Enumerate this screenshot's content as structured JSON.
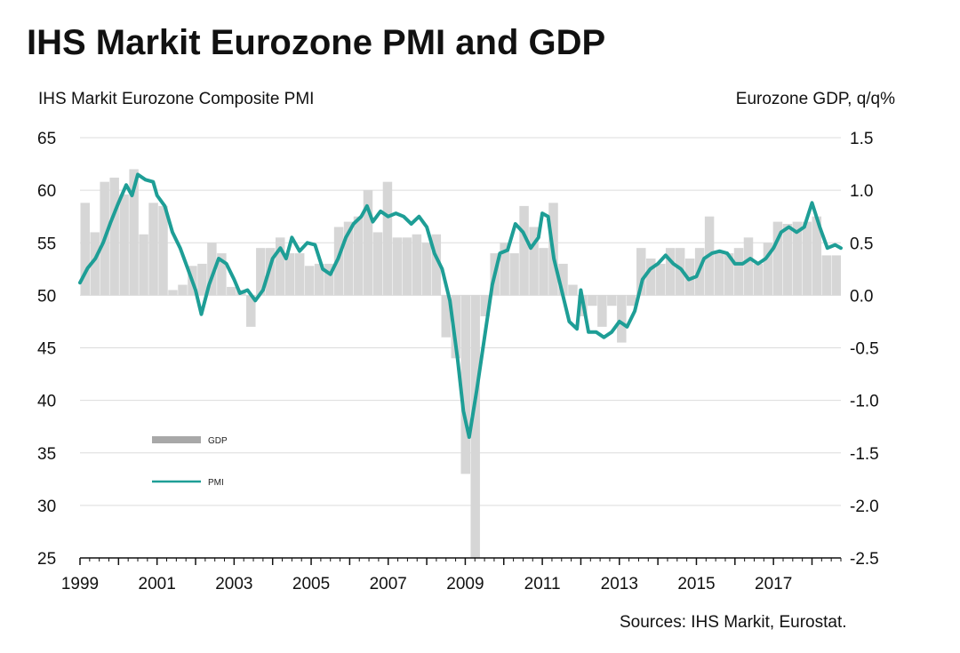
{
  "title": "IHS Markit Eurozone PMI and GDP",
  "left_axis_label": "IHS Markit Eurozone Composite PMI",
  "right_axis_label": "Eurozone GDP, q/q%",
  "source": "Sources: IHS Markit, Eurostat.",
  "colors": {
    "gdp": "#d6d6d6",
    "pmi": "#1e9e96",
    "grid": "#dcdcdc"
  },
  "chart_data": {
    "type": "bar+line",
    "x_ticks": [
      "1999",
      "2001",
      "2003",
      "2005",
      "2007",
      "2009",
      "2011",
      "2013",
      "2015",
      "2017"
    ],
    "y_left": {
      "range": [
        25,
        65
      ],
      "ticks": [
        "65",
        "60",
        "55",
        "50",
        "45",
        "40",
        "35",
        "30",
        "25"
      ]
    },
    "y_right": {
      "range": [
        -2.5,
        1.5
      ],
      "ticks": [
        "1.5",
        "1.0",
        "0.5",
        "0.0",
        "-0.5",
        "-1.0",
        "-1.5",
        "-2.0",
        "-2.5"
      ]
    },
    "legend": [
      {
        "name": "GDP"
      },
      {
        "name": "PMI"
      }
    ],
    "series": [
      {
        "name": "GDP",
        "axis": "right",
        "kind": "bar",
        "quarters": [
          "1999Q1",
          "1999Q2",
          "1999Q3",
          "1999Q4",
          "2000Q1",
          "2000Q2",
          "2000Q3",
          "2000Q4",
          "2001Q1",
          "2001Q2",
          "2001Q3",
          "2001Q4",
          "2002Q1",
          "2002Q2",
          "2002Q3",
          "2002Q4",
          "2003Q1",
          "2003Q2",
          "2003Q3",
          "2003Q4",
          "2004Q1",
          "2004Q2",
          "2004Q3",
          "2004Q4",
          "2005Q1",
          "2005Q2",
          "2005Q3",
          "2005Q4",
          "2006Q1",
          "2006Q2",
          "2006Q3",
          "2006Q4",
          "2007Q1",
          "2007Q2",
          "2007Q3",
          "2007Q4",
          "2008Q1",
          "2008Q2",
          "2008Q3",
          "2008Q4",
          "2009Q1",
          "2009Q2",
          "2009Q3",
          "2009Q4",
          "2010Q1",
          "2010Q2",
          "2010Q3",
          "2010Q4",
          "2011Q1",
          "2011Q2",
          "2011Q3",
          "2011Q4",
          "2012Q1",
          "2012Q2",
          "2012Q3",
          "2012Q4",
          "2013Q1",
          "2013Q2",
          "2013Q3",
          "2013Q4",
          "2014Q1",
          "2014Q2",
          "2014Q3",
          "2014Q4",
          "2015Q1",
          "2015Q2",
          "2015Q3",
          "2015Q4",
          "2016Q1",
          "2016Q2",
          "2016Q3",
          "2016Q4",
          "2017Q1",
          "2017Q2",
          "2017Q3",
          "2017Q4",
          "2018Q1",
          "2018Q2"
        ],
        "values": [
          0.88,
          0.6,
          1.08,
          1.12,
          0.96,
          1.2,
          0.58,
          0.88,
          0.85,
          0.05,
          0.1,
          0.28,
          0.3,
          0.5,
          0.4,
          0.08,
          0.05,
          -0.3,
          0.45,
          0.45,
          0.55,
          0.4,
          0.4,
          0.28,
          0.3,
          0.3,
          0.65,
          0.7,
          0.75,
          1.0,
          0.6,
          1.08,
          0.55,
          0.55,
          0.58,
          0.5,
          0.58,
          -0.4,
          -0.6,
          -1.7,
          -2.5,
          -0.2,
          0.4,
          0.5,
          0.4,
          0.85,
          0.65,
          0.45,
          0.88,
          0.3,
          0.1,
          -0.2,
          -0.1,
          -0.3,
          -0.1,
          -0.45,
          -0.1,
          0.45,
          0.35,
          0.3,
          0.45,
          0.45,
          0.35,
          0.45,
          0.75,
          0.4,
          0.4,
          0.45,
          0.55,
          0.3,
          0.5,
          0.7,
          0.68,
          0.7,
          0.7,
          0.75,
          0.38,
          0.38
        ]
      },
      {
        "name": "PMI",
        "axis": "left",
        "kind": "line",
        "points": [
          [
            1999.0,
            51.2
          ],
          [
            1999.2,
            52.6
          ],
          [
            1999.4,
            53.5
          ],
          [
            1999.6,
            55.0
          ],
          [
            1999.8,
            57.0
          ],
          [
            2000.0,
            58.8
          ],
          [
            2000.2,
            60.5
          ],
          [
            2000.35,
            59.5
          ],
          [
            2000.5,
            61.5
          ],
          [
            2000.7,
            61.0
          ],
          [
            2000.9,
            60.8
          ],
          [
            2001.0,
            59.5
          ],
          [
            2001.2,
            58.5
          ],
          [
            2001.4,
            56.0
          ],
          [
            2001.6,
            54.5
          ],
          [
            2001.8,
            52.5
          ],
          [
            2002.0,
            50.5
          ],
          [
            2002.15,
            48.2
          ],
          [
            2002.35,
            51.0
          ],
          [
            2002.6,
            53.5
          ],
          [
            2002.8,
            53.0
          ],
          [
            2003.0,
            51.5
          ],
          [
            2003.15,
            50.2
          ],
          [
            2003.35,
            50.5
          ],
          [
            2003.55,
            49.5
          ],
          [
            2003.75,
            50.5
          ],
          [
            2004.0,
            53.5
          ],
          [
            2004.2,
            54.5
          ],
          [
            2004.35,
            53.5
          ],
          [
            2004.5,
            55.5
          ],
          [
            2004.7,
            54.2
          ],
          [
            2004.9,
            55.0
          ],
          [
            2005.1,
            54.8
          ],
          [
            2005.3,
            52.5
          ],
          [
            2005.5,
            52.0
          ],
          [
            2005.7,
            53.5
          ],
          [
            2005.9,
            55.5
          ],
          [
            2006.1,
            56.8
          ],
          [
            2006.3,
            57.5
          ],
          [
            2006.45,
            58.5
          ],
          [
            2006.6,
            57.0
          ],
          [
            2006.8,
            58.0
          ],
          [
            2007.0,
            57.5
          ],
          [
            2007.2,
            57.8
          ],
          [
            2007.4,
            57.5
          ],
          [
            2007.6,
            56.8
          ],
          [
            2007.8,
            57.5
          ],
          [
            2008.0,
            56.5
          ],
          [
            2008.2,
            54.0
          ],
          [
            2008.4,
            52.5
          ],
          [
            2008.6,
            49.5
          ],
          [
            2008.8,
            44.0
          ],
          [
            2008.95,
            39.0
          ],
          [
            2009.1,
            36.5
          ],
          [
            2009.3,
            41.0
          ],
          [
            2009.5,
            46.0
          ],
          [
            2009.7,
            51.0
          ],
          [
            2009.9,
            54.0
          ],
          [
            2010.1,
            54.3
          ],
          [
            2010.3,
            56.8
          ],
          [
            2010.5,
            56.0
          ],
          [
            2010.7,
            54.5
          ],
          [
            2010.9,
            55.5
          ],
          [
            2011.0,
            57.8
          ],
          [
            2011.15,
            57.5
          ],
          [
            2011.3,
            53.5
          ],
          [
            2011.5,
            50.5
          ],
          [
            2011.7,
            47.5
          ],
          [
            2011.9,
            46.8
          ],
          [
            2012.0,
            50.5
          ],
          [
            2012.2,
            46.5
          ],
          [
            2012.4,
            46.5
          ],
          [
            2012.6,
            46.0
          ],
          [
            2012.8,
            46.5
          ],
          [
            2013.0,
            47.5
          ],
          [
            2013.2,
            47.0
          ],
          [
            2013.4,
            48.5
          ],
          [
            2013.6,
            51.5
          ],
          [
            2013.8,
            52.5
          ],
          [
            2014.0,
            53.0
          ],
          [
            2014.2,
            53.8
          ],
          [
            2014.4,
            53.0
          ],
          [
            2014.6,
            52.5
          ],
          [
            2014.8,
            51.5
          ],
          [
            2015.0,
            51.8
          ],
          [
            2015.2,
            53.5
          ],
          [
            2015.4,
            54.0
          ],
          [
            2015.6,
            54.2
          ],
          [
            2015.8,
            54.0
          ],
          [
            2016.0,
            53.0
          ],
          [
            2016.2,
            53.0
          ],
          [
            2016.4,
            53.5
          ],
          [
            2016.6,
            53.0
          ],
          [
            2016.8,
            53.5
          ],
          [
            2017.0,
            54.5
          ],
          [
            2017.2,
            56.0
          ],
          [
            2017.4,
            56.5
          ],
          [
            2017.6,
            56.0
          ],
          [
            2017.8,
            56.5
          ],
          [
            2018.0,
            58.8
          ],
          [
            2018.2,
            56.5
          ],
          [
            2018.4,
            54.5
          ],
          [
            2018.6,
            54.8
          ],
          [
            2018.75,
            54.5
          ]
        ]
      }
    ]
  }
}
